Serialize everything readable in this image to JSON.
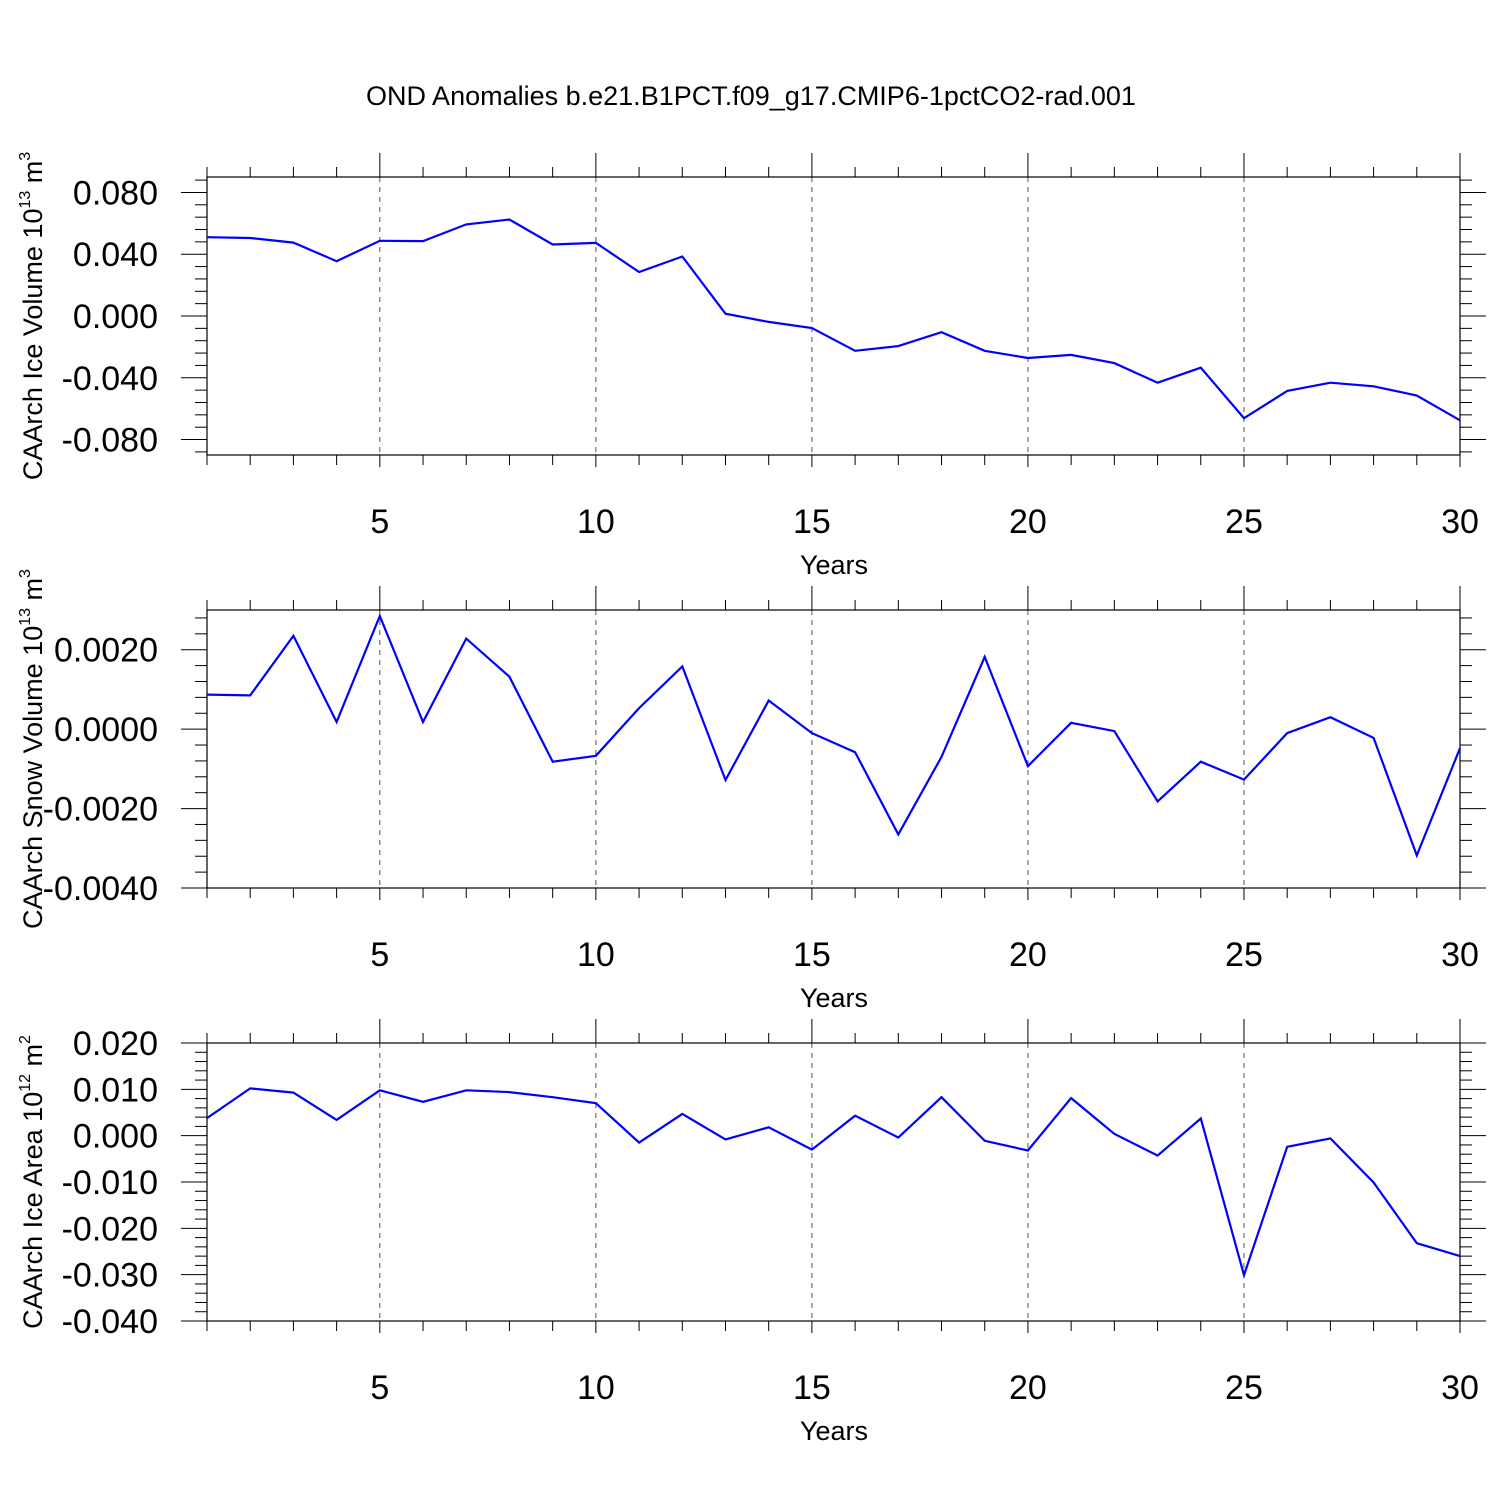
{
  "figure": {
    "title": "OND Anomalies b.e21.B1PCT.f09_g17.CMIP6-1pctCO2-rad.001",
    "line_color": "#0000ff"
  },
  "chart_data": [
    {
      "type": "line",
      "title": "",
      "xlabel": "Years",
      "ylabel": {
        "main": "CAArch Ice Volume 10",
        "sup1": "13",
        "mid": " m",
        "sup2": "3"
      },
      "xlim": [
        1,
        30
      ],
      "ylim": [
        -0.09,
        0.09
      ],
      "xticks": [
        5,
        10,
        15,
        20,
        25,
        30
      ],
      "xtick_labels": [
        "5",
        "10",
        "15",
        "20",
        "25",
        "30"
      ],
      "yticks": [
        0.08,
        0.04,
        0.0,
        -0.04,
        -0.08
      ],
      "ytick_labels": [
        "0.080",
        "0.040",
        "0.000",
        "-0.040",
        "-0.080"
      ],
      "grid": "vertical dashed at major x ticks",
      "series": [
        {
          "x": [
            1,
            2,
            3,
            4,
            5,
            6,
            7,
            8,
            9,
            10,
            11,
            12,
            13,
            14,
            15,
            16,
            17,
            18,
            19,
            20,
            21,
            22,
            23,
            24,
            25,
            26,
            27,
            28,
            29,
            30
          ],
          "y": [
            0.051,
            0.0505,
            0.0475,
            0.0355,
            0.0487,
            0.0485,
            0.0593,
            0.0625,
            0.0463,
            0.0473,
            0.0285,
            0.0385,
            0.0015,
            -0.0038,
            -0.0078,
            -0.0225,
            -0.0195,
            -0.0105,
            -0.0225,
            -0.0272,
            -0.0252,
            -0.0305,
            -0.0432,
            -0.0335,
            -0.0662,
            -0.0485,
            -0.0432,
            -0.0455,
            -0.0515,
            -0.0675
          ]
        }
      ]
    },
    {
      "type": "line",
      "title": "",
      "xlabel": "Years",
      "ylabel": {
        "main": "CAArch Snow Volume 10",
        "sup1": "13",
        "mid": " m",
        "sup2": "3"
      },
      "xlim": [
        1,
        30
      ],
      "ylim": [
        -0.004,
        0.003
      ],
      "xticks": [
        5,
        10,
        15,
        20,
        25,
        30
      ],
      "xtick_labels": [
        "5",
        "10",
        "15",
        "20",
        "25",
        "30"
      ],
      "yticks": [
        0.002,
        0.0,
        -0.002,
        -0.004
      ],
      "ytick_labels": [
        "0.0020",
        "0.0000",
        "-0.0020",
        "-0.0040"
      ],
      "grid": "vertical dashed at major x ticks",
      "series": [
        {
          "x": [
            1,
            2,
            3,
            4,
            5,
            6,
            7,
            8,
            9,
            10,
            11,
            12,
            13,
            14,
            15,
            16,
            17,
            18,
            19,
            20,
            21,
            22,
            23,
            24,
            25,
            26,
            27,
            28,
            29,
            30
          ],
          "y": [
            0.00087,
            0.00085,
            0.00235,
            0.00018,
            0.00285,
            0.00018,
            0.00228,
            0.00132,
            -0.00082,
            -0.00067,
            0.00053,
            0.00158,
            -0.00128,
            0.00072,
            -0.0001,
            -0.00058,
            -0.00265,
            -0.0007,
            0.00182,
            -0.00093,
            0.00016,
            -5e-05,
            -0.00182,
            -0.00082,
            -0.00127,
            -0.0001,
            0.0003,
            -0.00022,
            -0.00318,
            -0.00048
          ]
        }
      ]
    },
    {
      "type": "line",
      "title": "",
      "xlabel": "Years",
      "ylabel": {
        "main": "CAArch Ice Area 10",
        "sup1": "12",
        "mid": " m",
        "sup2": "2"
      },
      "xlim": [
        1,
        30
      ],
      "ylim": [
        -0.04,
        0.02
      ],
      "xticks": [
        5,
        10,
        15,
        20,
        25,
        30
      ],
      "xtick_labels": [
        "5",
        "10",
        "15",
        "20",
        "25",
        "30"
      ],
      "yticks": [
        0.02,
        0.01,
        0.0,
        -0.01,
        -0.02,
        -0.03,
        -0.04
      ],
      "ytick_labels": [
        "0.020",
        "0.010",
        "0.000",
        "-0.010",
        "-0.020",
        "-0.030",
        "-0.040"
      ],
      "grid": "vertical dashed at major x ticks",
      "series": [
        {
          "x": [
            1,
            2,
            3,
            4,
            5,
            6,
            7,
            8,
            9,
            10,
            11,
            12,
            13,
            14,
            15,
            16,
            17,
            18,
            19,
            20,
            21,
            22,
            23,
            24,
            25,
            26,
            27,
            28,
            29,
            30
          ],
          "y": [
            0.0038,
            0.0102,
            0.0093,
            0.0034,
            0.0098,
            0.0073,
            0.0098,
            0.0094,
            0.0083,
            0.007,
            -0.0015,
            0.0047,
            -0.0008,
            0.0018,
            -0.003,
            0.0043,
            -0.0004,
            0.0083,
            -0.0011,
            -0.0032,
            0.0081,
            0.0004,
            -0.0043,
            0.0037,
            -0.0301,
            -0.0024,
            -0.0006,
            -0.0101,
            -0.0232,
            -0.026
          ]
        }
      ]
    }
  ]
}
